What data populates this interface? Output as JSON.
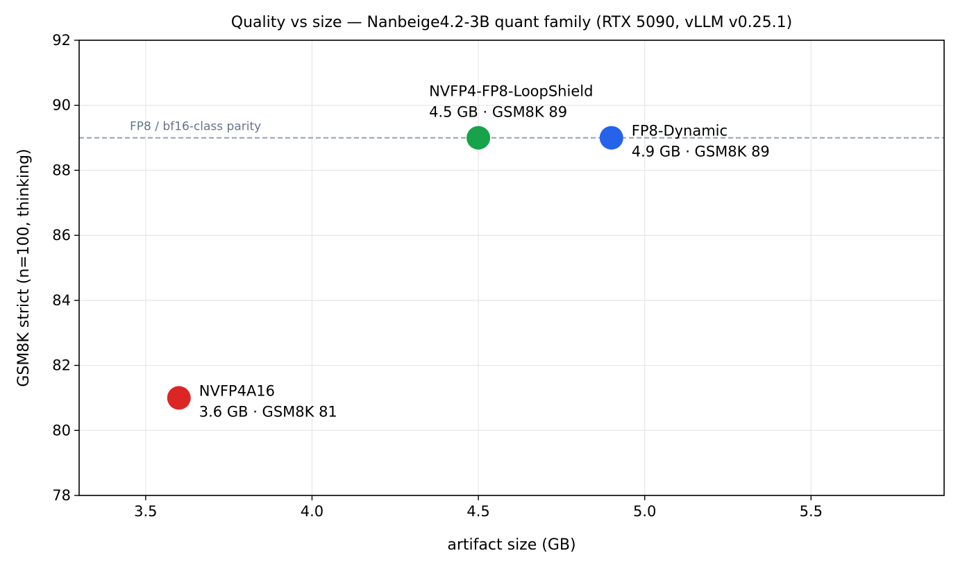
{
  "chart_data": {
    "type": "scatter",
    "title": "Quality vs size — Nanbeige4.2-3B quant family (RTX 5090, vLLM v0.25.1)",
    "xlabel": "artifact size (GB)",
    "ylabel": "GSM8K strict (n=100, thinking)",
    "xlim": [
      3.3,
      5.9
    ],
    "ylim": [
      78,
      92
    ],
    "xticks": [
      3.5,
      4.0,
      4.5,
      5.0,
      5.5
    ],
    "xtick_labels": [
      "3.5",
      "4.0",
      "4.5",
      "5.0",
      "5.5"
    ],
    "yticks": [
      78,
      80,
      82,
      84,
      86,
      88,
      90,
      92
    ],
    "ytick_labels": [
      "78",
      "80",
      "82",
      "84",
      "86",
      "88",
      "90",
      "92"
    ],
    "grid": true,
    "reference_line": {
      "y": 89,
      "label": "FP8 / bf16-class parity",
      "color": "#8fa0b3",
      "label_color": "#64748b"
    },
    "points": [
      {
        "name": "NVFP4A16",
        "x": 3.6,
        "y": 81,
        "label_line1": "NVFP4A16",
        "label_line2": "3.6 GB · GSM8K 81",
        "color": "#dc2626",
        "label_position": "right"
      },
      {
        "name": "NVFP4-FP8-LoopShield",
        "x": 4.5,
        "y": 89,
        "label_line1": "NVFP4-FP8-LoopShield",
        "label_line2": "4.5 GB · GSM8K 89",
        "color": "#16a34a",
        "label_position": "above"
      },
      {
        "name": "FP8-Dynamic",
        "x": 4.9,
        "y": 89,
        "label_line1": "FP8-Dynamic",
        "label_line2": "4.9 GB · GSM8K 89",
        "color": "#2563eb",
        "label_position": "right"
      }
    ]
  }
}
